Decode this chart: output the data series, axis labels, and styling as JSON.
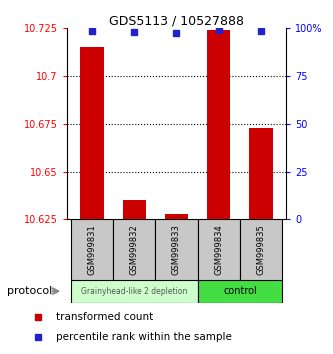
{
  "title": "GDS5113 / 10527888",
  "samples": [
    "GSM999831",
    "GSM999832",
    "GSM999833",
    "GSM999834",
    "GSM999835"
  ],
  "red_values": [
    10.715,
    10.635,
    10.628,
    10.724,
    10.673
  ],
  "blue_values": [
    98.5,
    98.0,
    97.8,
    99.0,
    98.5
  ],
  "ylim_left": [
    10.625,
    10.725
  ],
  "ylim_right": [
    0,
    100
  ],
  "yticks_left": [
    10.625,
    10.65,
    10.675,
    10.7,
    10.725
  ],
  "yticks_right": [
    0,
    25,
    50,
    75,
    100
  ],
  "bar_color": "#cc0000",
  "dot_color": "#2222cc",
  "group1_label": "Grainyhead-like 2 depletion",
  "group2_label": "control",
  "group1_color": "#ccffcc",
  "group2_color": "#44dd44",
  "legend_bar_label": "transformed count",
  "legend_dot_label": "percentile rank within the sample",
  "protocol_label": "protocol",
  "bar_width": 0.55,
  "baseline": 10.625
}
